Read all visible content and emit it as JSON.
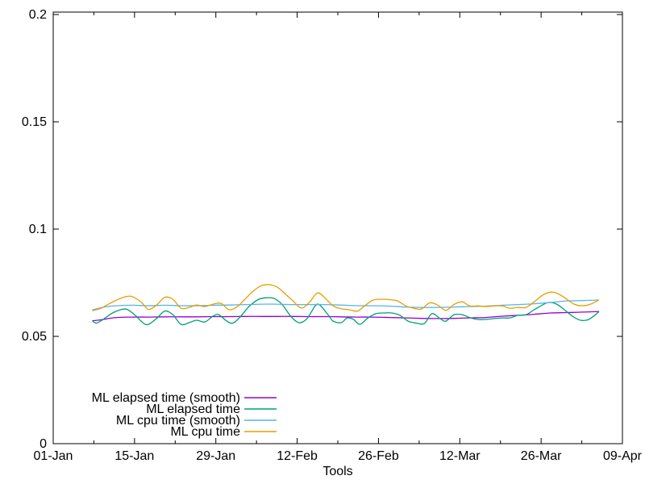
{
  "chart_data": {
    "type": "line",
    "title": "",
    "xlabel": "Tools",
    "ylabel": "",
    "x_unit": "days since 01-Jan",
    "xlim_days": [
      0,
      98
    ],
    "ylim": [
      0,
      0.2
    ],
    "grid": false,
    "legend_position": "inside-bottom-left",
    "x_major_ticks": [
      {
        "day": 0,
        "label": "01-Jan"
      },
      {
        "day": 14,
        "label": "15-Jan"
      },
      {
        "day": 28,
        "label": "29-Jan"
      },
      {
        "day": 42,
        "label": "12-Feb"
      },
      {
        "day": 56,
        "label": "26-Feb"
      },
      {
        "day": 70,
        "label": "12-Mar"
      },
      {
        "day": 84,
        "label": "26-Mar"
      },
      {
        "day": 98,
        "label": "09-Apr"
      }
    ],
    "x_minor_ticks_days": [
      7,
      21,
      35,
      49,
      63,
      77,
      91
    ],
    "y_major_ticks": [
      {
        "v": 0,
        "label": "0"
      },
      {
        "v": 0.05,
        "label": "0.05"
      },
      {
        "v": 0.1,
        "label": "0.1"
      },
      {
        "v": 0.15,
        "label": "0.15"
      },
      {
        "v": 0.2,
        "label": "0.2"
      }
    ],
    "series": [
      {
        "name": "ML elapsed time (smooth)",
        "color": "#9400d3",
        "points": [
          [
            6.8,
            0.0573
          ],
          [
            8.2,
            0.0577
          ],
          [
            9.5,
            0.0583
          ],
          [
            10.9,
            0.0588
          ],
          [
            13.7,
            0.059
          ],
          [
            16.4,
            0.059
          ],
          [
            19.2,
            0.0591
          ],
          [
            22.0,
            0.0591
          ],
          [
            24.7,
            0.0591
          ],
          [
            27.5,
            0.0592
          ],
          [
            30.3,
            0.0592
          ],
          [
            33.0,
            0.0593
          ],
          [
            35.8,
            0.0593
          ],
          [
            38.6,
            0.0593
          ],
          [
            41.3,
            0.0593
          ],
          [
            44.1,
            0.0592
          ],
          [
            46.9,
            0.0592
          ],
          [
            49.6,
            0.0591
          ],
          [
            52.4,
            0.059
          ],
          [
            55.1,
            0.059
          ],
          [
            57.9,
            0.0588
          ],
          [
            60.7,
            0.0586
          ],
          [
            63.4,
            0.0584
          ],
          [
            66.2,
            0.0583
          ],
          [
            69.0,
            0.0584
          ],
          [
            71.7,
            0.0586
          ],
          [
            74.5,
            0.0588
          ],
          [
            77.3,
            0.0594
          ],
          [
            80.0,
            0.0598
          ],
          [
            82.8,
            0.0603
          ],
          [
            85.6,
            0.0609
          ],
          [
            88.3,
            0.0611
          ],
          [
            91.1,
            0.0613
          ],
          [
            93.9,
            0.0616
          ]
        ]
      },
      {
        "name": "ML elapsed time",
        "color": "#009e73",
        "points": [
          [
            6.8,
            0.0571
          ],
          [
            7.5,
            0.0562
          ],
          [
            8.8,
            0.0583
          ],
          [
            10.2,
            0.0609
          ],
          [
            11.6,
            0.0624
          ],
          [
            12.7,
            0.0626
          ],
          [
            14.1,
            0.0599
          ],
          [
            15.5,
            0.0562
          ],
          [
            16.4,
            0.0556
          ],
          [
            17.8,
            0.0583
          ],
          [
            19.2,
            0.0618
          ],
          [
            20.6,
            0.0601
          ],
          [
            22.0,
            0.0556
          ],
          [
            23.4,
            0.0564
          ],
          [
            24.7,
            0.0575
          ],
          [
            26.1,
            0.0567
          ],
          [
            27.5,
            0.0594
          ],
          [
            28.5,
            0.0601
          ],
          [
            29.9,
            0.0571
          ],
          [
            31.0,
            0.0562
          ],
          [
            32.3,
            0.0594
          ],
          [
            33.7,
            0.0639
          ],
          [
            35.4,
            0.0673
          ],
          [
            36.8,
            0.068
          ],
          [
            38.1,
            0.0676
          ],
          [
            39.5,
            0.0646
          ],
          [
            40.9,
            0.0594
          ],
          [
            42.3,
            0.0564
          ],
          [
            43.7,
            0.0583
          ],
          [
            45.1,
            0.0642
          ],
          [
            45.9,
            0.0646
          ],
          [
            47.3,
            0.0601
          ],
          [
            48.2,
            0.0571
          ],
          [
            49.6,
            0.0564
          ],
          [
            50.6,
            0.0586
          ],
          [
            51.7,
            0.0579
          ],
          [
            52.8,
            0.0556
          ],
          [
            54.2,
            0.0586
          ],
          [
            55.6,
            0.0606
          ],
          [
            56.9,
            0.0609
          ],
          [
            58.3,
            0.0609
          ],
          [
            59.7,
            0.0598
          ],
          [
            61.1,
            0.0571
          ],
          [
            62.5,
            0.0562
          ],
          [
            63.9,
            0.056
          ],
          [
            65.2,
            0.0606
          ],
          [
            66.6,
            0.0583
          ],
          [
            67.6,
            0.0571
          ],
          [
            69.0,
            0.0601
          ],
          [
            70.4,
            0.0601
          ],
          [
            71.7,
            0.0588
          ],
          [
            73.1,
            0.0579
          ],
          [
            74.5,
            0.0579
          ],
          [
            75.9,
            0.0583
          ],
          [
            77.3,
            0.0586
          ],
          [
            78.6,
            0.0586
          ],
          [
            80.0,
            0.0598
          ],
          [
            81.4,
            0.0601
          ],
          [
            82.8,
            0.0624
          ],
          [
            84.2,
            0.0646
          ],
          [
            85.3,
            0.0658
          ],
          [
            86.7,
            0.065
          ],
          [
            88.0,
            0.0624
          ],
          [
            89.4,
            0.0594
          ],
          [
            90.8,
            0.0575
          ],
          [
            92.2,
            0.0579
          ],
          [
            93.9,
            0.0613
          ]
        ]
      },
      {
        "name": "ML cpu time (smooth)",
        "color": "#56b4e9",
        "points": [
          [
            6.8,
            0.0624
          ],
          [
            8.8,
            0.0637
          ],
          [
            10.9,
            0.0643
          ],
          [
            13.7,
            0.0645
          ],
          [
            16.4,
            0.0643
          ],
          [
            19.2,
            0.0645
          ],
          [
            22.0,
            0.0643
          ],
          [
            24.7,
            0.0643
          ],
          [
            27.5,
            0.0645
          ],
          [
            30.3,
            0.0646
          ],
          [
            33.0,
            0.0648
          ],
          [
            35.8,
            0.065
          ],
          [
            38.6,
            0.065
          ],
          [
            41.3,
            0.0648
          ],
          [
            44.1,
            0.0648
          ],
          [
            46.9,
            0.0648
          ],
          [
            49.6,
            0.0646
          ],
          [
            52.4,
            0.0643
          ],
          [
            55.1,
            0.0643
          ],
          [
            57.9,
            0.0641
          ],
          [
            60.7,
            0.0637
          ],
          [
            63.4,
            0.0635
          ],
          [
            66.2,
            0.0635
          ],
          [
            69.0,
            0.0637
          ],
          [
            71.7,
            0.0639
          ],
          [
            74.5,
            0.0641
          ],
          [
            77.3,
            0.0645
          ],
          [
            80.0,
            0.0648
          ],
          [
            82.8,
            0.0652
          ],
          [
            85.6,
            0.0658
          ],
          [
            88.3,
            0.0665
          ],
          [
            91.1,
            0.0667
          ],
          [
            93.9,
            0.0669
          ]
        ]
      },
      {
        "name": "ML cpu time",
        "color": "#e69f00",
        "points": [
          [
            6.8,
            0.062
          ],
          [
            8.2,
            0.0631
          ],
          [
            9.5,
            0.065
          ],
          [
            10.9,
            0.0669
          ],
          [
            12.3,
            0.0684
          ],
          [
            13.5,
            0.0686
          ],
          [
            15.1,
            0.0661
          ],
          [
            16.4,
            0.0626
          ],
          [
            17.8,
            0.0646
          ],
          [
            19.2,
            0.0682
          ],
          [
            20.6,
            0.0673
          ],
          [
            22.0,
            0.0631
          ],
          [
            23.4,
            0.0635
          ],
          [
            24.7,
            0.0646
          ],
          [
            26.1,
            0.0639
          ],
          [
            27.5,
            0.065
          ],
          [
            28.9,
            0.0654
          ],
          [
            30.3,
            0.0624
          ],
          [
            31.7,
            0.0639
          ],
          [
            33.0,
            0.0673
          ],
          [
            34.4,
            0.071
          ],
          [
            35.8,
            0.0736
          ],
          [
            37.2,
            0.0741
          ],
          [
            38.6,
            0.0729
          ],
          [
            39.9,
            0.0699
          ],
          [
            41.3,
            0.0665
          ],
          [
            42.7,
            0.0632
          ],
          [
            44.1,
            0.0658
          ],
          [
            45.5,
            0.0703
          ],
          [
            46.9,
            0.0676
          ],
          [
            48.2,
            0.0642
          ],
          [
            49.6,
            0.0629
          ],
          [
            51.0,
            0.0624
          ],
          [
            52.4,
            0.0618
          ],
          [
            53.8,
            0.0646
          ],
          [
            55.1,
            0.0669
          ],
          [
            56.5,
            0.0673
          ],
          [
            57.9,
            0.0671
          ],
          [
            59.3,
            0.0665
          ],
          [
            60.7,
            0.0642
          ],
          [
            62.1,
            0.0631
          ],
          [
            63.4,
            0.0628
          ],
          [
            64.8,
            0.0656
          ],
          [
            66.2,
            0.0646
          ],
          [
            67.6,
            0.0621
          ],
          [
            69.0,
            0.0649
          ],
          [
            70.4,
            0.0661
          ],
          [
            71.7,
            0.0642
          ],
          [
            73.1,
            0.0642
          ],
          [
            74.5,
            0.0639
          ],
          [
            75.9,
            0.0642
          ],
          [
            77.3,
            0.0642
          ],
          [
            78.6,
            0.0631
          ],
          [
            80.0,
            0.0635
          ],
          [
            81.4,
            0.0635
          ],
          [
            82.8,
            0.0661
          ],
          [
            84.2,
            0.0691
          ],
          [
            85.6,
            0.0706
          ],
          [
            86.9,
            0.0699
          ],
          [
            88.3,
            0.0676
          ],
          [
            89.7,
            0.065
          ],
          [
            91.1,
            0.0643
          ],
          [
            92.5,
            0.065
          ],
          [
            93.9,
            0.0669
          ]
        ]
      }
    ]
  }
}
